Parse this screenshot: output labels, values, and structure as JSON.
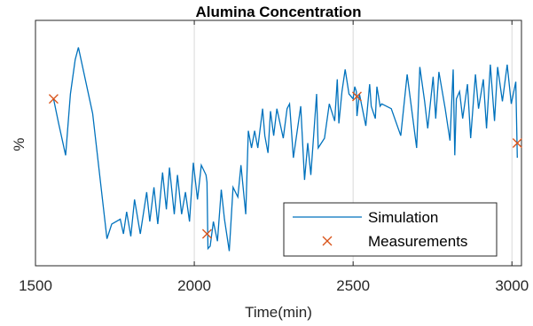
{
  "chart_data": {
    "type": "line",
    "title": "Alumina Concentration",
    "xlabel": "Time(min)",
    "ylabel": "%",
    "xlim": [
      1500,
      3030
    ],
    "ylim": [
      0,
      100
    ],
    "xticks": [
      1500,
      2000,
      2500,
      3000
    ],
    "xtick_labels": [
      "1500",
      "2000",
      "2500",
      "3000"
    ],
    "yticks": [],
    "grid_x": true,
    "legend_location": "bottom-right",
    "colors": {
      "simulation": "#0072BD",
      "measurements": "#D95319",
      "grid": "#d9d9d9",
      "axis": "#262626"
    },
    "series": [
      {
        "name": "Simulation",
        "style": "line",
        "x": [
          1557,
          1573,
          1595,
          1610,
          1625,
          1635,
          1680,
          1725,
          1740,
          1767,
          1777,
          1787,
          1800,
          1812,
          1830,
          1850,
          1860,
          1873,
          1885,
          1900,
          1912,
          1922,
          1937,
          1947,
          1960,
          1972,
          1985,
          1997,
          2010,
          2022,
          2037,
          2040,
          2043,
          2050,
          2060,
          2073,
          2085,
          2095,
          2110,
          2122,
          2137,
          2147,
          2162,
          2170,
          2180,
          2190,
          2200,
          2215,
          2222,
          2232,
          2240,
          2250,
          2260,
          2280,
          2292,
          2300,
          2312,
          2335,
          2347,
          2357,
          2367,
          2385,
          2390,
          2410,
          2425,
          2442,
          2450,
          2455,
          2465,
          2475,
          2487,
          2500,
          2505,
          2510,
          2512,
          2520,
          2540,
          2552,
          2557,
          2570,
          2575,
          2585,
          2590,
          2620,
          2650,
          2670,
          2700,
          2710,
          2725,
          2735,
          2752,
          2760,
          2770,
          2790,
          2805,
          2815,
          2820,
          2825,
          2835,
          2845,
          2860,
          2870,
          2885,
          2895,
          2910,
          2920,
          2932,
          2945,
          2955,
          2970,
          2985,
          2998,
          3012,
          3017
        ],
        "y": [
          68,
          58,
          45,
          70,
          84,
          89,
          62,
          11,
          17,
          19,
          13,
          22,
          12,
          27,
          13,
          30,
          18,
          32,
          17,
          38,
          23,
          40,
          21,
          37,
          21,
          30,
          18,
          42,
          27,
          41,
          37,
          34,
          7,
          8,
          18,
          10,
          31,
          19,
          6,
          32,
          28,
          41,
          21,
          55,
          48,
          55,
          48,
          64,
          53,
          46,
          63,
          53,
          64,
          52,
          64,
          66,
          44,
          65,
          35,
          50,
          37,
          70,
          48,
          52,
          66,
          59,
          76,
          58,
          71,
          80,
          70,
          68,
          73,
          71,
          61,
          70,
          57,
          74,
          65,
          60,
          73,
          65,
          66,
          64,
          53,
          78,
          48,
          81,
          67,
          56,
          77,
          60,
          79,
          64,
          51,
          80,
          45,
          68,
          71,
          60,
          74,
          52,
          78,
          64,
          76,
          56,
          82,
          59,
          81,
          67,
          82,
          66,
          75,
          44
        ]
      },
      {
        "name": "Measurements",
        "style": "marker",
        "x": [
          1557,
          2040,
          2512,
          3017
        ],
        "y": [
          68,
          13,
          69,
          50
        ]
      }
    ]
  }
}
